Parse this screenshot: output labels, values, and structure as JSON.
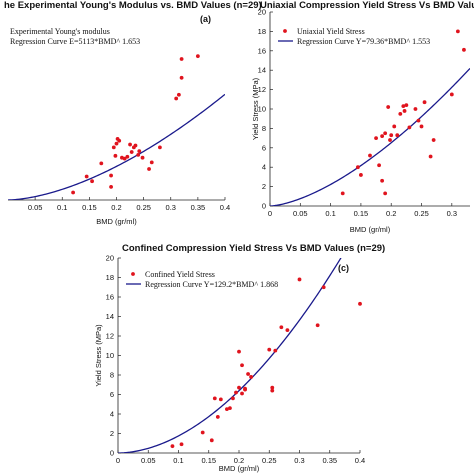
{
  "colors": {
    "points": "#e0141e",
    "curve": "#1a1a8c",
    "axis": "#222222"
  },
  "chart_data": [
    {
      "id": "a",
      "type": "scatter",
      "title": "he Experimental Young's Modulus vs. BMD Values (n=29)",
      "panel_label": "(a)",
      "xlabel": "BMD (gr/ml)",
      "ylabel": "",
      "xlim": [
        0,
        0.4
      ],
      "ylim": [
        0,
        2000
      ],
      "x_ticks": [
        "0.05",
        "0.1",
        "0.15",
        "0.2",
        "0.25",
        "0.3",
        "0.35",
        "0.4"
      ],
      "y_ticks": [],
      "legend_lines": [
        "Experimental Young's modulus",
        "Regression Curve E=5113*BMD^ 1.653"
      ],
      "curve": {
        "coef": 5113,
        "exp": 1.653
      },
      "series": [
        {
          "x": [
            0.12,
            0.145,
            0.155,
            0.172,
            0.19,
            0.19,
            0.195,
            0.198,
            0.202,
            0.205,
            0.21,
            0.215,
            0.22,
            0.225,
            0.228,
            0.232,
            0.235,
            0.24,
            0.248,
            0.26,
            0.265,
            0.28,
            0.31,
            0.315,
            0.32,
            0.32,
            0.35,
            0.2,
            0.242
          ],
          "y": [
            80,
            250,
            200,
            390,
            260,
            140,
            560,
            470,
            650,
            630,
            450,
            440,
            460,
            590,
            510,
            560,
            580,
            480,
            450,
            330,
            400,
            560,
            1080,
            1120,
            1300,
            1500,
            1530,
            600,
            520
          ]
        }
      ]
    },
    {
      "id": "b",
      "type": "scatter",
      "title": "Uniaxial Compression  Yield Stress Vs BMD Values",
      "panel_label": "",
      "xlabel": "BMD (gr/ml)",
      "ylabel": "Yield Stress (MPa)",
      "xlim": [
        0,
        0.33
      ],
      "ylim": [
        0,
        20
      ],
      "x_ticks": [
        "0",
        "0.05",
        "0.1",
        "0.15",
        "0.2",
        "0.25",
        "0.3"
      ],
      "y_ticks": [
        "0",
        "2",
        "4",
        "6",
        "8",
        "10",
        "12",
        "14",
        "16",
        "18",
        "20"
      ],
      "legend_lines": [
        "Uniaxial Yield Stress",
        "Regression Curve Y=79.36*BMD^ 1.553"
      ],
      "curve": {
        "coef": 79.36,
        "exp": 1.553
      },
      "series": [
        {
          "x": [
            0.12,
            0.145,
            0.15,
            0.165,
            0.175,
            0.18,
            0.185,
            0.19,
            0.19,
            0.195,
            0.198,
            0.2,
            0.205,
            0.21,
            0.215,
            0.22,
            0.222,
            0.225,
            0.23,
            0.24,
            0.245,
            0.25,
            0.255,
            0.265,
            0.27,
            0.3,
            0.31,
            0.32,
            0.185
          ],
          "y": [
            1.3,
            4.0,
            3.2,
            5.2,
            7.0,
            4.2,
            7.2,
            1.3,
            7.5,
            10.2,
            6.8,
            7.3,
            8.2,
            7.3,
            9.5,
            10.3,
            9.8,
            10.4,
            8.1,
            10.0,
            8.8,
            8.2,
            10.7,
            5.1,
            6.8,
            11.5,
            18.0,
            16.1,
            2.6
          ]
        }
      ]
    },
    {
      "id": "c",
      "type": "scatter",
      "title": "Confined Compression  Yield Stress Vs BMD Values (n=29)",
      "panel_label": "(c)",
      "xlabel": "BMD (gr/ml)",
      "ylabel": "Yield Stress (MPa)",
      "xlim": [
        0,
        0.4
      ],
      "ylim": [
        0,
        20
      ],
      "x_ticks": [
        "0",
        "0.05",
        "0.1",
        "0.15",
        "0.2",
        "0.25",
        "0.3",
        "0.35",
        "0.4"
      ],
      "y_ticks": [
        "0",
        "2",
        "4",
        "6",
        "8",
        "10",
        "12",
        "14",
        "16",
        "18",
        "20"
      ],
      "legend_lines": [
        "Confined Yield Stress",
        "Regression Curve Y=129.2*BMD^ 1.868"
      ],
      "curve": {
        "coef": 129.2,
        "exp": 1.868
      },
      "series": [
        {
          "x": [
            0.09,
            0.105,
            0.14,
            0.155,
            0.16,
            0.165,
            0.17,
            0.18,
            0.19,
            0.195,
            0.2,
            0.2,
            0.205,
            0.205,
            0.21,
            0.21,
            0.215,
            0.22,
            0.25,
            0.255,
            0.255,
            0.26,
            0.27,
            0.28,
            0.3,
            0.33,
            0.34,
            0.4,
            0.185
          ],
          "y": [
            0.7,
            0.9,
            2.1,
            1.3,
            5.6,
            3.7,
            5.5,
            4.5,
            5.6,
            6.2,
            6.7,
            10.4,
            9.0,
            6.1,
            6.5,
            6.6,
            8.1,
            7.8,
            10.6,
            6.7,
            6.4,
            10.5,
            12.9,
            12.6,
            17.8,
            13.1,
            17.0,
            15.3,
            4.6
          ]
        }
      ]
    }
  ]
}
